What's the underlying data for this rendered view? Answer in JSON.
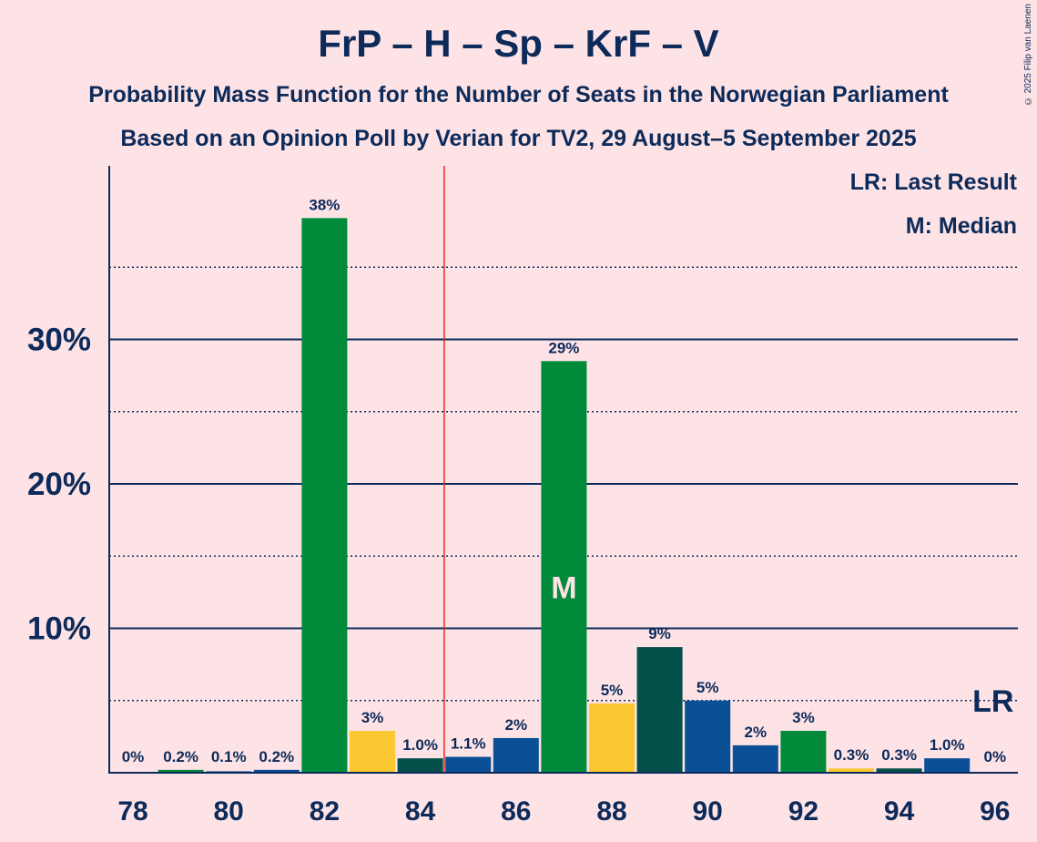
{
  "chart_data": {
    "type": "bar",
    "title": "FrP – H – Sp – KrF – V",
    "subtitle": "Probability Mass Function for the Number of Seats in the Norwegian Parliament",
    "subtitle2": "Based on an Opinion Poll by Verian for TV2, 29 August–5 September 2025",
    "copyright": "© 2025 Filip van Laenen",
    "legend": {
      "lr": "LR: Last Result",
      "m": "M: Median"
    },
    "x": [
      78,
      79,
      80,
      81,
      82,
      83,
      84,
      85,
      86,
      87,
      88,
      89,
      90,
      91,
      92,
      93,
      94,
      95,
      96
    ],
    "values": [
      0,
      0.2,
      0.1,
      0.2,
      38.4,
      2.9,
      1.0,
      1.1,
      2.4,
      28.5,
      4.8,
      8.7,
      5.0,
      1.9,
      2.9,
      0.3,
      0.3,
      1.0,
      0
    ],
    "labels": [
      "0%",
      "0.2%",
      "0.1%",
      "0.2%",
      "38%",
      "3%",
      "1.0%",
      "1.1%",
      "2%",
      "29%",
      "5%",
      "9%",
      "5%",
      "2%",
      "3%",
      "0.3%",
      "0.3%",
      "1.0%",
      "0%"
    ],
    "colors": [
      "#008a3a",
      "#008a3a",
      "#0b4f96",
      "#0b4f96",
      "#008a3a",
      "#fcc832",
      "#03504a",
      "#0b4f96",
      "#0b4f96",
      "#008a3a",
      "#fcc832",
      "#03504a",
      "#0b4f96",
      "#0b4f96",
      "#008a3a",
      "#fcc832",
      "#03504a",
      "#0b4f96",
      "#0b4f96"
    ],
    "x_ticks": [
      78,
      80,
      82,
      84,
      86,
      88,
      90,
      92,
      94,
      96
    ],
    "y_ticks": [
      10,
      20,
      30
    ],
    "y_tick_labels": [
      "10%",
      "20%",
      "30%"
    ],
    "y_minor_ticks": [
      5,
      15,
      25,
      35
    ],
    "ylim": [
      0,
      42
    ],
    "median_seat": 87,
    "median_label": "M",
    "last_result_seat": 96,
    "last_result_label": "LR",
    "majority_line_x": 84.5
  }
}
